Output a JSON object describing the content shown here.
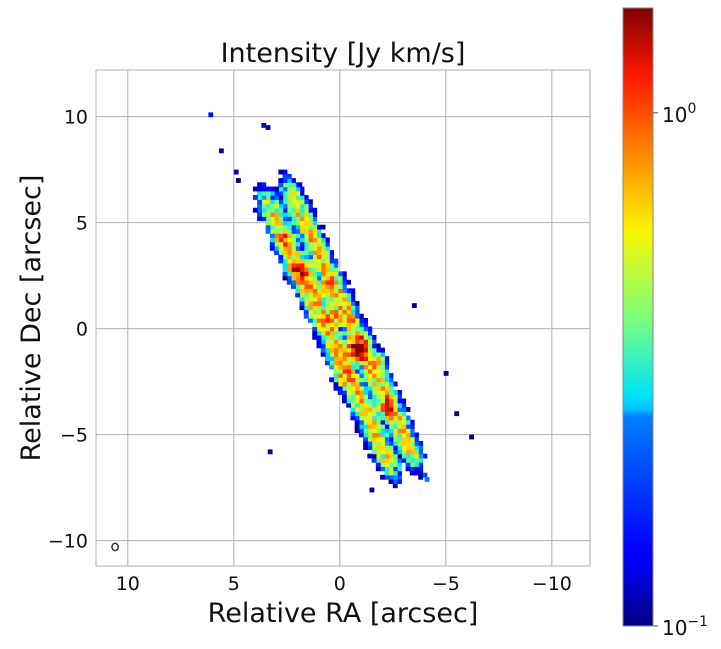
{
  "chart_data": {
    "type": "heatmap",
    "title": "Intensity [Jy km/s]",
    "xlabel": "Relative RA [arcsec]",
    "ylabel": "Relative Dec [arcsec]",
    "xlim": [
      11.5,
      -11.8
    ],
    "ylim": [
      -11.2,
      12.2
    ],
    "xticks": [
      {
        "value": 10,
        "label": "10"
      },
      {
        "value": 5,
        "label": "5"
      },
      {
        "value": 0,
        "label": "0"
      },
      {
        "value": -5,
        "label": "−5"
      },
      {
        "value": -10,
        "label": "−10"
      }
    ],
    "yticks": [
      {
        "value": 10,
        "label": "10"
      },
      {
        "value": 5,
        "label": "5"
      },
      {
        "value": 0,
        "label": "0"
      },
      {
        "value": -5,
        "label": "−5"
      },
      {
        "value": -10,
        "label": "−10"
      }
    ],
    "grid": true,
    "colormap": "jet",
    "colorbar": {
      "scale": "log",
      "range": [
        0.1,
        1.6
      ],
      "ticks": [
        {
          "value": 1.0,
          "base": "10",
          "exponent": "0"
        },
        {
          "value": 0.1,
          "base": "10",
          "exponent": "−1"
        }
      ]
    },
    "emission_model": {
      "description": "edge-on disk with two parallel ridges",
      "center": [
        0.0,
        0.0
      ],
      "position_angle_deg": 25,
      "major_extent": 7.8,
      "ridge_offset": 0.6,
      "ridge_width": 0.42,
      "peak_intensity": 1.2,
      "pixel_size": 0.2
    },
    "hotspots": [
      {
        "ra": -0.8,
        "dec": -0.95,
        "intensity": 1.6
      },
      {
        "ra": 1.9,
        "dec": 2.8,
        "intensity": 1.0
      },
      {
        "ra": -2.2,
        "dec": -3.7,
        "intensity": 0.6
      },
      {
        "ra": 0.3,
        "dec": 0.6,
        "intensity": 0.5
      },
      {
        "ra": 0.8,
        "dec": 1.9,
        "intensity": 0.45
      },
      {
        "ra": -1.8,
        "dec": -1.6,
        "intensity": 0.35
      },
      {
        "ra": 2.7,
        "dec": 4.2,
        "intensity": 0.35
      },
      {
        "ra": -0.2,
        "dec": -2.3,
        "intensity": 0.3
      }
    ],
    "isolated_pixels": [
      {
        "ra": 6.1,
        "dec": 10.1,
        "intensity": 0.15
      },
      {
        "ra": 3.6,
        "dec": 9.6,
        "intensity": 0.12
      },
      {
        "ra": 3.4,
        "dec": 9.5,
        "intensity": 0.12
      },
      {
        "ra": 5.6,
        "dec": 8.4,
        "intensity": 0.11
      },
      {
        "ra": 4.9,
        "dec": 7.4,
        "intensity": 0.11
      },
      {
        "ra": 4.8,
        "dec": 7.0,
        "intensity": 0.1
      },
      {
        "ra": 1.9,
        "dec": 6.8,
        "intensity": 0.12
      },
      {
        "ra": 3.3,
        "dec": -5.8,
        "intensity": 0.1
      },
      {
        "ra": -5.5,
        "dec": -4.0,
        "intensity": 0.1
      },
      {
        "ra": -6.2,
        "dec": -5.1,
        "intensity": 0.1
      },
      {
        "ra": -4.0,
        "dec": -6.9,
        "intensity": 0.2
      },
      {
        "ra": -4.1,
        "dec": -7.1,
        "intensity": 0.25
      },
      {
        "ra": -1.5,
        "dec": -7.6,
        "intensity": 0.11
      },
      {
        "ra": -5.0,
        "dec": -2.1,
        "intensity": 0.11
      },
      {
        "ra": -3.5,
        "dec": 1.1,
        "intensity": 0.1
      }
    ],
    "beam": {
      "ra": 10.6,
      "dec": -10.3,
      "major": 0.25,
      "minor": 0.2,
      "pa_deg": 0
    }
  }
}
